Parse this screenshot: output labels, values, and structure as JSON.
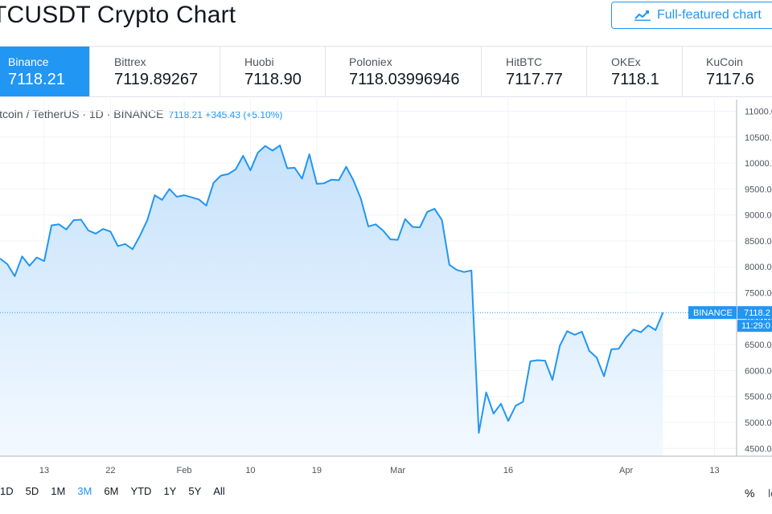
{
  "title": "TCUSDT Crypto Chart",
  "full_button": {
    "label": "Full-featured chart",
    "icon": "chart-line-icon"
  },
  "exchanges": [
    {
      "name": "Binance",
      "price": "7118.21"
    },
    {
      "name": "Bittrex",
      "price": "7119.89267"
    },
    {
      "name": "Huobi",
      "price": "7118.90"
    },
    {
      "name": "Poloniex",
      "price": "7118.03996946"
    },
    {
      "name": "HitBTC",
      "price": "7117.77"
    },
    {
      "name": "OKEx",
      "price": "7118.1"
    },
    {
      "name": "KuCoin",
      "price": "7117.6"
    }
  ],
  "legend": {
    "symbol": "itcoin / TetherUS · 1D · BINANCE",
    "value": "7118.21 +345.43 (+5.10%)"
  },
  "price_label": {
    "exchange": "BINANCE",
    "price": "7118.2",
    "countdown": "11:29:0"
  },
  "ranges": [
    "1D",
    "5D",
    "1M",
    "3M",
    "6M",
    "YTD",
    "1Y",
    "5Y",
    "All"
  ],
  "active_range": "3M",
  "percent_label": "%",
  "log_label": "lo",
  "colors": {
    "accent": "#2196f3",
    "fill_top": "#c6e2fb",
    "fill_bottom": "#f3f9ff"
  },
  "chart_data": {
    "type": "area",
    "symbol": "BTCUSDT",
    "y_ticks": [
      4500,
      5000,
      5500,
      6000,
      6500,
      7000,
      7500,
      8000,
      8500,
      9000,
      9500,
      10000,
      10500,
      11000
    ],
    "ylim": [
      4350,
      11100
    ],
    "x_ticks": [
      {
        "label": "13",
        "date": "2020-01-13"
      },
      {
        "label": "22",
        "date": "2020-01-22"
      },
      {
        "label": "Feb",
        "date": "2020-02-01"
      },
      {
        "label": "10",
        "date": "2020-02-10"
      },
      {
        "label": "19",
        "date": "2020-02-19"
      },
      {
        "label": "Mar",
        "date": "2020-03-01"
      },
      {
        "label": "16",
        "date": "2020-03-16"
      },
      {
        "label": "Apr",
        "date": "2020-04-01"
      },
      {
        "label": "13",
        "date": "2020-04-13"
      }
    ],
    "xlim": [
      "2020-01-07",
      "2020-04-16"
    ],
    "series": [
      {
        "dates": [
          "2020-01-07",
          "2020-01-08",
          "2020-01-09",
          "2020-01-10",
          "2020-01-11",
          "2020-01-12",
          "2020-01-13",
          "2020-01-14",
          "2020-01-15",
          "2020-01-16",
          "2020-01-17",
          "2020-01-18",
          "2020-01-19",
          "2020-01-20",
          "2020-01-21",
          "2020-01-22",
          "2020-01-23",
          "2020-01-24",
          "2020-01-25",
          "2020-01-26",
          "2020-01-27",
          "2020-01-28",
          "2020-01-29",
          "2020-01-30",
          "2020-01-31",
          "2020-02-01",
          "2020-02-02",
          "2020-02-03",
          "2020-02-04",
          "2020-02-05",
          "2020-02-06",
          "2020-02-07",
          "2020-02-08",
          "2020-02-09",
          "2020-02-10",
          "2020-02-11",
          "2020-02-12",
          "2020-02-13",
          "2020-02-14",
          "2020-02-15",
          "2020-02-16",
          "2020-02-17",
          "2020-02-18",
          "2020-02-19",
          "2020-02-20",
          "2020-02-21",
          "2020-02-22",
          "2020-02-23",
          "2020-02-24",
          "2020-02-25",
          "2020-02-26",
          "2020-02-27",
          "2020-02-28",
          "2020-02-29",
          "2020-03-01",
          "2020-03-02",
          "2020-03-03",
          "2020-03-04",
          "2020-03-05",
          "2020-03-06",
          "2020-03-07",
          "2020-03-08",
          "2020-03-09",
          "2020-03-10",
          "2020-03-11",
          "2020-03-12",
          "2020-03-13",
          "2020-03-14",
          "2020-03-15",
          "2020-03-16",
          "2020-03-17",
          "2020-03-18",
          "2020-03-19",
          "2020-03-20",
          "2020-03-21",
          "2020-03-22",
          "2020-03-23",
          "2020-03-24",
          "2020-03-25",
          "2020-03-26",
          "2020-03-27",
          "2020-03-28",
          "2020-03-29",
          "2020-03-30",
          "2020-03-31",
          "2020-04-01",
          "2020-04-02",
          "2020-04-03",
          "2020-04-04",
          "2020-04-05",
          "2020-04-06"
        ],
        "values": [
          8160,
          8050,
          7820,
          8200,
          8020,
          8180,
          8110,
          8800,
          8820,
          8720,
          8900,
          8910,
          8700,
          8640,
          8730,
          8680,
          8400,
          8440,
          8340,
          8600,
          8900,
          9380,
          9290,
          9500,
          9350,
          9380,
          9340,
          9300,
          9180,
          9620,
          9760,
          9790,
          9880,
          10140,
          9860,
          10200,
          10330,
          10240,
          10340,
          9900,
          9910,
          9700,
          10170,
          9600,
          9610,
          9680,
          9670,
          9930,
          9660,
          9310,
          8780,
          8820,
          8700,
          8530,
          8520,
          8920,
          8770,
          8760,
          9060,
          9120,
          8900,
          8040,
          7940,
          7900,
          7930,
          4800,
          5580,
          5170,
          5360,
          5030,
          5320,
          5400,
          6180,
          6200,
          6190,
          5820,
          6480,
          6760,
          6690,
          6750,
          6380,
          6250,
          5890,
          6410,
          6420,
          6640,
          6790,
          6740,
          6870,
          6780,
          7118.21
        ]
      }
    ],
    "last_value": 7118.21,
    "grid": true
  }
}
